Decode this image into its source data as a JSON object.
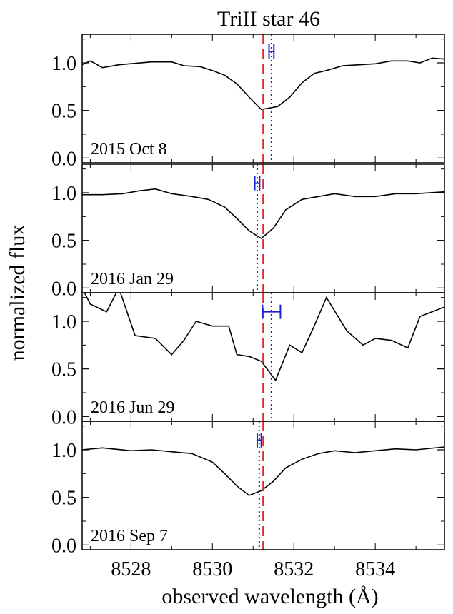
{
  "title": "TriII star 46",
  "xlabel": "observed wavelength (Å)",
  "ylabel": "normalized flux",
  "colors": {
    "spectrum": "#000000",
    "red_line": "#e8262a",
    "blue_line": "#1f1fd0",
    "frame": "#000000"
  },
  "chart_data": [
    {
      "type": "line",
      "label": "2015 Oct 8",
      "xlim": [
        8526.8,
        8535.7
      ],
      "ylim": [
        -0.05,
        1.3
      ],
      "yticks": [
        "0.0",
        "0.5",
        "1.0"
      ],
      "red_line_x": 8531.25,
      "blue_line_x": 8531.45,
      "errorbar": {
        "x": 8531.45,
        "y": 1.12,
        "xerr": 0.06
      },
      "x": [
        8526.8,
        8527.0,
        8527.3,
        8527.7,
        8528.5,
        8529.0,
        8529.3,
        8529.7,
        8530.0,
        8530.3,
        8530.6,
        8530.9,
        8531.2,
        8531.6,
        8531.9,
        8532.2,
        8532.5,
        8532.8,
        8533.2,
        8533.6,
        8534.0,
        8534.4,
        8534.8,
        8535.1,
        8535.4,
        8535.7
      ],
      "y": [
        0.98,
        1.02,
        0.95,
        0.98,
        1.01,
        1.01,
        0.97,
        0.96,
        0.92,
        0.87,
        0.78,
        0.64,
        0.51,
        0.54,
        0.64,
        0.79,
        0.89,
        0.92,
        0.97,
        0.98,
        0.99,
        1.02,
        1.02,
        1.0,
        1.05,
        1.04
      ]
    },
    {
      "type": "line",
      "label": "2016 Jan 29",
      "xlim": [
        8526.8,
        8535.7
      ],
      "ylim": [
        -0.05,
        1.3
      ],
      "yticks": [
        "0.0",
        "0.5",
        "1.0"
      ],
      "red_line_x": 8531.25,
      "blue_line_x": 8531.1,
      "errorbar": {
        "x": 8531.1,
        "y": 1.1,
        "xerr": 0.06
      },
      "x": [
        8526.8,
        8527.3,
        8527.8,
        8528.2,
        8528.6,
        8529.0,
        8529.5,
        8529.9,
        8530.3,
        8530.6,
        8530.9,
        8531.2,
        8531.5,
        8531.8,
        8532.2,
        8532.6,
        8533.0,
        8533.5,
        8534.0,
        8534.5,
        8535.0,
        8535.7
      ],
      "y": [
        0.98,
        0.98,
        0.99,
        1.02,
        1.04,
        0.99,
        0.96,
        0.93,
        0.85,
        0.73,
        0.6,
        0.52,
        0.63,
        0.82,
        0.93,
        0.96,
        0.99,
        0.96,
        0.96,
        0.99,
        0.99,
        1.01
      ]
    },
    {
      "type": "line",
      "label": "2016 Jun 29",
      "xlim": [
        8526.8,
        8535.7
      ],
      "ylim": [
        -0.05,
        1.3
      ],
      "yticks": [
        "0.0",
        "0.5",
        "1.0"
      ],
      "red_line_x": 8531.25,
      "blue_line_x": 8531.45,
      "errorbar": {
        "x": 8531.45,
        "y": 1.1,
        "xerr": 0.22
      },
      "x": [
        8526.8,
        8527.0,
        8527.4,
        8527.7,
        8528.1,
        8528.6,
        8529.0,
        8529.3,
        8529.6,
        8530.0,
        8530.4,
        8530.6,
        8530.9,
        8531.2,
        8531.55,
        8531.9,
        8532.2,
        8532.5,
        8532.8,
        8533.3,
        8533.7,
        8534.0,
        8534.4,
        8534.8,
        8535.1,
        8535.7
      ],
      "y": [
        1.35,
        1.18,
        1.1,
        1.35,
        0.85,
        0.82,
        0.65,
        0.8,
        1.0,
        0.95,
        0.95,
        0.65,
        0.63,
        0.58,
        0.38,
        0.75,
        0.67,
        0.95,
        1.25,
        0.9,
        0.75,
        0.82,
        0.8,
        0.72,
        1.05,
        1.15
      ]
    },
    {
      "type": "line",
      "label": "2016 Sep 7",
      "xlim": [
        8526.8,
        8535.7
      ],
      "ylim": [
        -0.05,
        1.3
      ],
      "yticks": [
        "0.0",
        "0.5",
        "1.0"
      ],
      "red_line_x": 8531.25,
      "blue_line_x": 8531.15,
      "errorbar": {
        "x": 8531.15,
        "y": 1.1,
        "xerr": 0.05
      },
      "x": [
        8526.8,
        8527.3,
        8528.0,
        8528.5,
        8529.0,
        8529.5,
        8530.0,
        8530.3,
        8530.6,
        8530.9,
        8531.2,
        8531.5,
        8531.8,
        8532.2,
        8532.6,
        8533.0,
        8533.5,
        8534.0,
        8534.5,
        8535.0,
        8535.7
      ],
      "y": [
        1.0,
        1.02,
        0.99,
        1.0,
        0.98,
        0.96,
        0.87,
        0.75,
        0.62,
        0.52,
        0.57,
        0.67,
        0.81,
        0.9,
        0.96,
        0.99,
        0.97,
        0.99,
        1.01,
        1.0,
        1.03
      ]
    }
  ],
  "xticks": [
    8528,
    8530,
    8532,
    8534
  ]
}
